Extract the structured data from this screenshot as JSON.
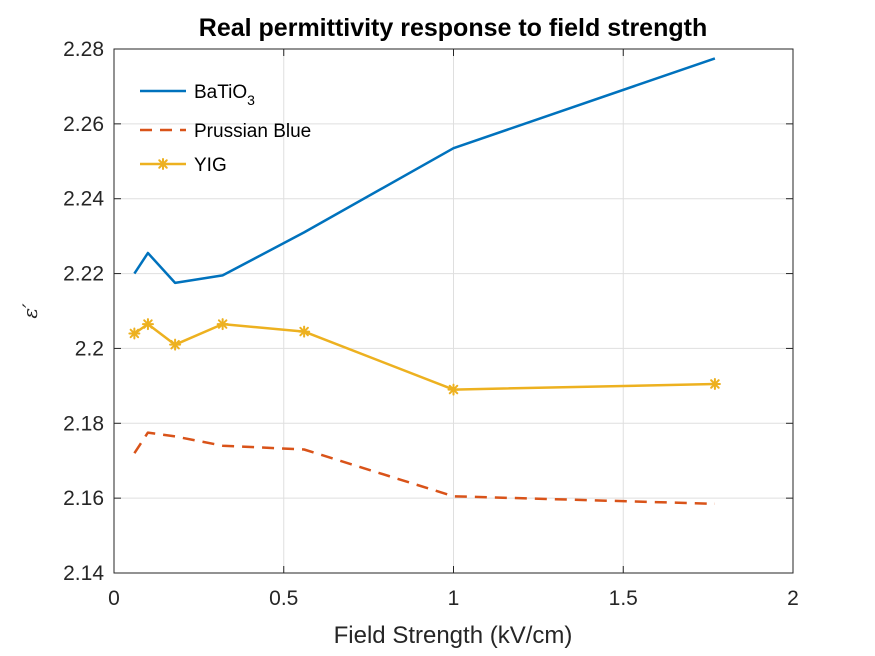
{
  "chart_data": {
    "type": "line",
    "title": "Real permittivity response to field strength",
    "xlabel": "Field Strength (kV/cm)",
    "ylabel": "ε′",
    "xlim": [
      0,
      2
    ],
    "ylim": [
      2.14,
      2.28
    ],
    "xticks": [
      0,
      0.5,
      1,
      1.5,
      2
    ],
    "xtick_labels": [
      "0",
      "0.5",
      "1",
      "1.5",
      "2"
    ],
    "yticks": [
      2.14,
      2.16,
      2.18,
      2.2,
      2.22,
      2.24,
      2.26,
      2.28
    ],
    "ytick_labels": [
      "2.14",
      "2.16",
      "2.18",
      "2.2",
      "2.22",
      "2.24",
      "2.26",
      "2.28"
    ],
    "grid": true,
    "legend_position": "top-left",
    "series": [
      {
        "name": "BaTiO",
        "name_subscript": "3",
        "color": "#0072BD",
        "line_style": "solid",
        "marker": "none",
        "x": [
          0.06,
          0.1,
          0.18,
          0.32,
          0.56,
          1.0,
          1.77
        ],
        "y": [
          2.22,
          2.2255,
          2.2175,
          2.2195,
          2.231,
          2.2535,
          2.2775
        ]
      },
      {
        "name": "Prussian Blue",
        "color": "#D95319",
        "line_style": "dashed",
        "marker": "none",
        "x": [
          0.06,
          0.1,
          0.18,
          0.32,
          0.56,
          1.0,
          1.77
        ],
        "y": [
          2.172,
          2.1775,
          2.1765,
          2.174,
          2.173,
          2.1605,
          2.1585
        ]
      },
      {
        "name": "YIG",
        "color": "#EDB120",
        "line_style": "solid",
        "marker": "asterisk",
        "x": [
          0.06,
          0.1,
          0.18,
          0.32,
          0.56,
          1.0,
          1.77
        ],
        "y": [
          2.204,
          2.2065,
          2.201,
          2.2065,
          2.2045,
          2.189,
          2.1905
        ]
      }
    ]
  }
}
